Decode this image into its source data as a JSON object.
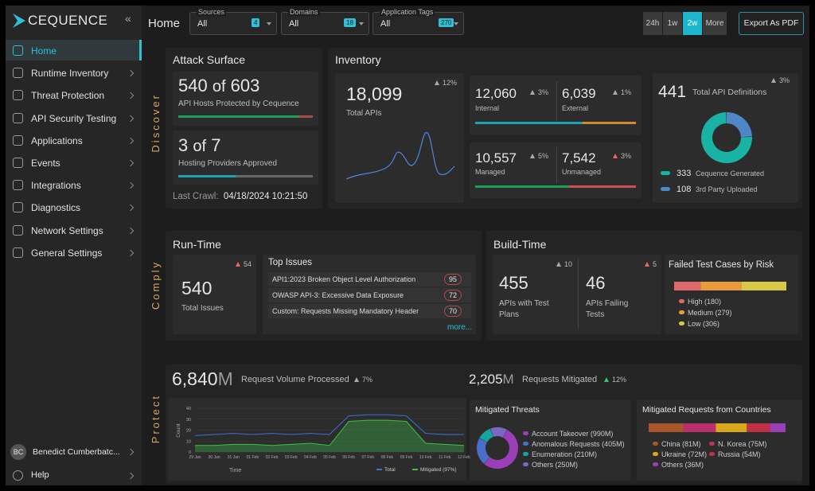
{
  "sidebar": {
    "logo": "CEQUENCE",
    "nav": [
      "Home",
      "Runtime Inventory",
      "Threat Protection",
      "API Security Testing",
      "Applications",
      "Events",
      "Integrations",
      "Diagnostics",
      "Network Settings",
      "General Settings"
    ],
    "user_initials": "BC",
    "user_name": "Benedict Cumberbatc...",
    "help": "Help"
  },
  "header": {
    "title": "Home",
    "filters": [
      {
        "label": "Sources",
        "value": "All",
        "count": 4
      },
      {
        "label": "Domains",
        "value": "All",
        "count": 18
      },
      {
        "label": "Application Tags",
        "value": "All",
        "count": 270
      }
    ],
    "time_ranges": [
      "24h",
      "1w",
      "2w",
      "More"
    ],
    "active_range": 2,
    "export_button": "Export As PDF"
  },
  "section_labels": {
    "discover": "Discover",
    "comply": "Comply",
    "protect": "Protect"
  },
  "attack_surface": {
    "title": "Attack Surface",
    "hosts": {
      "count": 540,
      "of": "of",
      "total": 603,
      "caption": "API Hosts Protected by Cequence"
    },
    "providers": {
      "count": 3,
      "of": "of",
      "total": 7,
      "caption": "Hosting Providers Approved"
    },
    "last_crawl_label": "Last Crawl:",
    "last_crawl": "04/18/2024 10:21:50"
  },
  "inventory": {
    "title": "Inventory",
    "total": {
      "value": {
        "value": 18099,
        "label": "18,099"
      },
      "caption": "Total APIs",
      "change": "12%"
    },
    "internal": {
      "value": {
        "value": 12060,
        "label": "12,060"
      },
      "caption": "Internal",
      "change": "3%"
    },
    "external": {
      "value": {
        "value": 6039,
        "label": "6,039"
      },
      "caption": "External",
      "change": "1%"
    },
    "managed": {
      "value": {
        "value": 10557,
        "label": "10,557"
      },
      "caption": "Managed",
      "change": "5%"
    },
    "unmanaged": {
      "value": {
        "value": 7542,
        "label": "7,542"
      },
      "caption": "Unmanaged",
      "change": "3%"
    },
    "definitions": {
      "value": 441,
      "caption": "Total API Definitions",
      "change": "3%",
      "series": [
        {
          "name": "Cequence Generated",
          "value": 333,
          "color": "#19b3a6"
        },
        {
          "name": "3rd Party Uploaded",
          "value": 108,
          "color": "#4f86c6"
        }
      ]
    }
  },
  "runtime": {
    "title": "Run-Time",
    "total_issues": {
      "value": 540,
      "caption": "Total Issues",
      "change": 54
    },
    "top_issues": {
      "title": "Top Issues",
      "rows": [
        {
          "name": "API1:2023 Broken Object Level Authorization",
          "count": 95
        },
        {
          "name": "OWASP API-3: Excessive Data Exposure",
          "count": 72
        },
        {
          "name": "Custom: Requests Missing Mandatory Header",
          "count": 70
        }
      ],
      "more": "more..."
    }
  },
  "buildtime": {
    "title": "Build-Time",
    "with_plans": {
      "value": 455,
      "caption": "APIs with Test Plans",
      "change": 10
    },
    "failing": {
      "value": 46,
      "caption": "APIs Failing Tests",
      "change": 5
    },
    "failed_cases": {
      "title": "Failed Test Cases by Risk",
      "series": [
        {
          "name": "High",
          "value": 180,
          "value_label": "(180)",
          "color": "#e06a6a"
        },
        {
          "name": "Medium",
          "value": 279,
          "value_label": "(279)",
          "color": "#e89a3c"
        },
        {
          "name": "Low",
          "value": 306,
          "value_label": "(306)",
          "color": "#d8c84a"
        }
      ]
    }
  },
  "protect": {
    "volume": {
      "value": "6,840",
      "unit": "M",
      "caption": "Request Volume Processed",
      "change": "7%"
    },
    "mitigated": {
      "value": "2,205",
      "unit": "M",
      "caption": "Requests Mitigated",
      "change": "12%"
    },
    "timeline": {
      "type": "line",
      "y_label": "Count",
      "x_label": "Time",
      "categories": [
        "29 Jan",
        "30 Jan",
        "31 Jan",
        "01 Feb",
        "02 Feb",
        "03 Feb",
        "04 Feb",
        "05 Feb",
        "06 Feb",
        "07 Feb",
        "08 Feb",
        "09 Feb",
        "10 Feb",
        "11 Feb",
        "12 Feb"
      ],
      "series": [
        {
          "name": "Total",
          "color": "#3f6fd8",
          "values": [
            15,
            16,
            17,
            16,
            17,
            16,
            17,
            16,
            33,
            34,
            34,
            33,
            17,
            16,
            16
          ]
        },
        {
          "name": "Mitigated (97%)",
          "color": "#3dbf4a",
          "values": [
            6,
            6,
            7,
            7,
            6,
            7,
            8,
            6,
            28,
            29,
            29,
            28,
            8,
            7,
            6
          ]
        }
      ],
      "ylim": [
        0,
        40
      ],
      "yticks": [
        0,
        10,
        20,
        30,
        40
      ],
      "grid": true
    },
    "threats": {
      "title": "Mitigated Threats",
      "series": [
        {
          "name": "Account Takeover",
          "value": 990,
          "value_label": "(990M)",
          "color": "#9b3fb8"
        },
        {
          "name": "Anomalous Requests",
          "value": 405,
          "value_label": "(405M)",
          "color": "#4a6fc8"
        },
        {
          "name": "Enumeration",
          "value": 210,
          "value_label": "(210M)",
          "color": "#19a3a0"
        },
        {
          "name": "Others",
          "value": 250,
          "value_label": "(250M)",
          "color": "#7a68c4"
        }
      ]
    },
    "countries": {
      "title": "Mitigated Requests from Countries",
      "series": [
        {
          "name": "China",
          "value": 81,
          "value_label": "(81M)",
          "color": "#a8562a"
        },
        {
          "name": "N. Korea",
          "value": 75,
          "value_label": "(75M)",
          "color": "#b8306c"
        },
        {
          "name": "Ukraine",
          "value": 72,
          "value_label": "(72M)",
          "color": "#d8a81a"
        },
        {
          "name": "Russia",
          "value": 54,
          "value_label": "(54M)",
          "color": "#c23048"
        },
        {
          "name": "Others",
          "value": 36,
          "value_label": "(36M)",
          "color": "#9b3fb8"
        }
      ]
    }
  }
}
